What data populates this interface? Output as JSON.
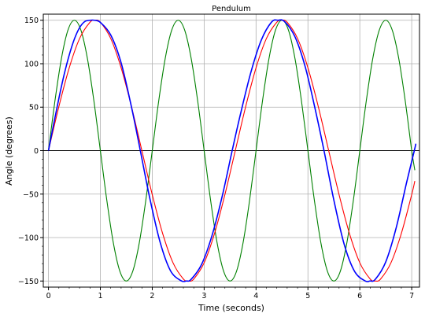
{
  "chart_data": {
    "type": "line",
    "title": "Pendulum",
    "xlabel": "Time (seconds)",
    "ylabel": "Angle (degrees)",
    "xlim": [
      -0.1,
      7.15
    ],
    "ylim": [
      -157,
      157
    ],
    "grid": true,
    "zero_line": true,
    "x_ticks": [
      0,
      1,
      2,
      3,
      4,
      5,
      6,
      7
    ],
    "y_ticks": [
      -150,
      -100,
      -50,
      0,
      50,
      100,
      150
    ],
    "series": [
      {
        "color": "#008000",
        "x": [
          0,
          0.125,
          0.25,
          0.375,
          0.5,
          0.625,
          0.75,
          0.875,
          1.0,
          1.125,
          1.25,
          1.375,
          1.5,
          1.625,
          1.75,
          1.875,
          2.0,
          2.125,
          2.25,
          2.375,
          2.5,
          2.625,
          2.75,
          2.875,
          3.0,
          3.125,
          3.25,
          3.375,
          3.5,
          3.625,
          3.75,
          3.875,
          4.0,
          4.125,
          4.25,
          4.375,
          4.5,
          4.625,
          4.75,
          4.875,
          5.0,
          5.125,
          5.25,
          5.375,
          5.5,
          5.625,
          5.75,
          5.875,
          6.0,
          6.125,
          6.25,
          6.375,
          6.5,
          6.625,
          6.75,
          6.875,
          7.0,
          7.06
        ],
        "y": [
          0,
          57.4,
          106.1,
          138.6,
          150,
          138.6,
          106.1,
          57.4,
          0,
          -57.4,
          -106.1,
          -138.6,
          -150,
          -138.6,
          -106.1,
          -57.4,
          0,
          57.4,
          106.1,
          138.6,
          150,
          138.6,
          106.1,
          57.4,
          0,
          -57.4,
          -106.1,
          -138.6,
          -150,
          -138.6,
          -106.1,
          -57.4,
          0,
          57.4,
          106.1,
          138.6,
          150,
          138.6,
          106.1,
          57.4,
          0,
          -57.4,
          -106.1,
          -138.6,
          -150,
          -138.6,
          -106.1,
          -57.4,
          0,
          57.4,
          106.1,
          138.6,
          150,
          138.6,
          106.1,
          57.4,
          0,
          -22.5
        ]
      },
      {
        "color": "#ff0000",
        "x": [
          0,
          0.2,
          0.4,
          0.6,
          0.8,
          0.9,
          1.0,
          1.2,
          1.4,
          1.6,
          1.8,
          2.0,
          2.2,
          2.4,
          2.6,
          2.7,
          2.8,
          3.0,
          3.2,
          3.4,
          3.6,
          3.8,
          4.0,
          4.2,
          4.4,
          4.5,
          4.6,
          4.8,
          5.0,
          5.2,
          5.4,
          5.6,
          5.8,
          6.0,
          6.2,
          6.3,
          6.4,
          6.6,
          6.8,
          7.0,
          7.06
        ],
        "y": [
          0,
          50.6,
          95.3,
          129.0,
          147.7,
          150,
          147.7,
          129.0,
          95.3,
          50.6,
          0,
          -50.6,
          -95.3,
          -129.0,
          -147.7,
          -150,
          -147.7,
          -129.0,
          -95.3,
          -50.6,
          0,
          50.6,
          95.3,
          129.0,
          147.7,
          150,
          147.7,
          129.0,
          95.3,
          50.6,
          0,
          -50.6,
          -95.3,
          -129.0,
          -147.7,
          -150,
          -147.7,
          -129.0,
          -95.3,
          -50.6,
          -35
        ]
      },
      {
        "color": "#0000ff",
        "x": [
          0,
          0.1,
          0.2,
          0.3,
          0.4,
          0.5,
          0.6,
          0.7,
          0.8,
          0.885,
          1.0,
          1.2,
          1.4,
          1.6,
          1.77,
          1.95,
          2.15,
          2.35,
          2.55,
          2.655,
          2.75,
          2.95,
          3.15,
          3.35,
          3.54,
          3.7,
          3.9,
          4.1,
          4.3,
          4.425,
          4.55,
          4.75,
          4.95,
          5.15,
          5.31,
          5.5,
          5.7,
          5.9,
          6.1,
          6.195,
          6.3,
          6.5,
          6.7,
          6.9,
          7.05,
          7.08
        ],
        "y": [
          0,
          30.5,
          60,
          87,
          110,
          128.5,
          141.5,
          148.5,
          150,
          150,
          147.5,
          133,
          101,
          50,
          0,
          -54,
          -105,
          -138,
          -149.5,
          -150,
          -148,
          -131,
          -98,
          -52,
          0,
          42,
          90,
          127,
          148,
          150,
          148.5,
          131,
          96,
          45,
          0,
          -57,
          -108,
          -139,
          -149.8,
          -150,
          -148,
          -128,
          -89,
          -37,
          0,
          8
        ]
      }
    ]
  }
}
